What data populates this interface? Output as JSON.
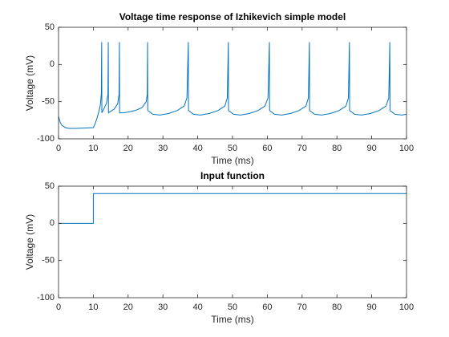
{
  "chart_data": [
    {
      "type": "line",
      "title": "Voltage time response of Izhikevich simple model",
      "xlabel": "Time (ms)",
      "ylabel": "Voltage (mV)",
      "color": "#0072bd",
      "x": [
        0,
        0.5,
        1,
        2,
        3,
        5,
        8,
        10,
        10.5,
        11,
        11.5,
        12,
        12.3,
        12.4,
        12.45,
        13,
        13.8,
        14.2,
        14.3,
        14.35,
        15,
        16,
        17,
        17.4,
        17.5,
        17.55,
        18.5,
        20,
        22,
        24,
        25.2,
        25.5,
        25.6,
        25.65,
        27.1,
        29.1,
        31.6,
        34.1,
        36.1,
        36.9,
        37.3,
        37.35,
        38.8,
        40.8,
        43.3,
        45.8,
        47.8,
        48.5,
        48.8,
        48.85,
        50.3,
        52.3,
        54.8,
        57.3,
        59.3,
        60.2,
        60.6,
        60.65,
        62.1,
        64.1,
        66.6,
        69.1,
        71.1,
        71.8,
        72.1,
        72.15,
        73.6,
        75.6,
        78.1,
        80.6,
        82.6,
        83.3,
        83.6,
        83.65,
        85.1,
        87.1,
        89.6,
        92.1,
        94.1,
        94.9,
        95.2,
        95.25,
        96.7,
        98.7,
        100
      ],
      "values": [
        -70,
        -78,
        -82,
        -85,
        -86,
        -86,
        -85.5,
        -85,
        -80,
        -73,
        -65,
        -55,
        -40,
        30,
        -65,
        -60,
        -52,
        -40,
        30,
        -65,
        -63,
        -60,
        -53,
        -40,
        30,
        -65,
        -65,
        -64,
        -62,
        -58,
        -50,
        -40,
        30,
        -62,
        -67,
        -68,
        -66,
        -62,
        -56,
        -45,
        30,
        -62,
        -67,
        -68,
        -66,
        -62,
        -56,
        -45,
        30,
        -62,
        -67,
        -68,
        -66,
        -62,
        -56,
        -45,
        30,
        -62,
        -67,
        -68,
        -66,
        -62,
        -56,
        -45,
        30,
        -62,
        -67,
        -68,
        -66,
        -62,
        -56,
        -45,
        30,
        -62,
        -67,
        -68,
        -66,
        -62,
        -56,
        -45,
        30,
        -62,
        -67,
        -68,
        -67
      ],
      "xlim": [
        0,
        100
      ],
      "ylim": [
        -100,
        50
      ],
      "xticks": [
        0,
        10,
        20,
        30,
        40,
        50,
        60,
        70,
        80,
        90,
        100
      ],
      "yticks": [
        -100,
        -50,
        0,
        50
      ]
    },
    {
      "type": "line",
      "title": "Input function",
      "xlabel": "Time (ms)",
      "ylabel": "Voltage (mV)",
      "color": "#0072bd",
      "x": [
        0,
        10,
        10,
        100
      ],
      "values": [
        0,
        0,
        40,
        40
      ],
      "xlim": [
        0,
        100
      ],
      "ylim": [
        -100,
        50
      ],
      "xticks": [
        0,
        10,
        20,
        30,
        40,
        50,
        60,
        70,
        80,
        90,
        100
      ],
      "yticks": [
        -100,
        -50,
        0,
        50
      ]
    }
  ]
}
